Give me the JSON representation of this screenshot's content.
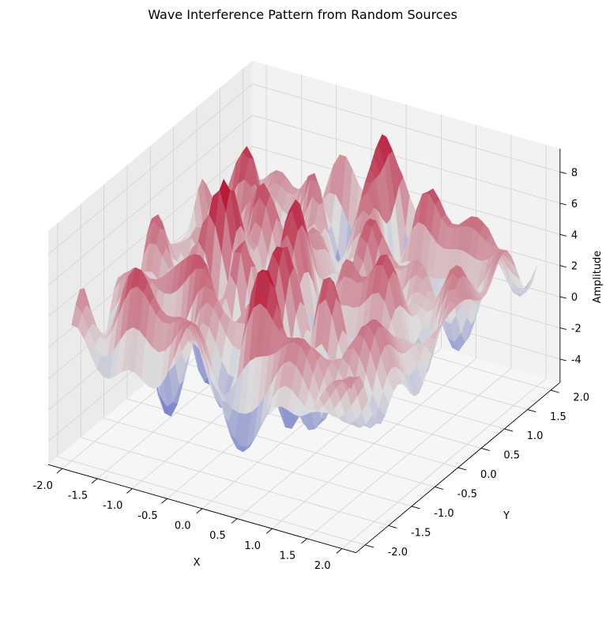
{
  "chart_data": {
    "type": "surface3d",
    "title": "Wave Interference Pattern from Random Sources",
    "xlabel": "X",
    "ylabel": "Y",
    "zlabel": "Amplitude",
    "xlim": [
      -2.2,
      2.2
    ],
    "ylim": [
      -2.2,
      2.2
    ],
    "zlim": [
      -5.5,
      9.5
    ],
    "x_ticks": [
      "-2.0",
      "-1.5",
      "-1.0",
      "-0.5",
      "0.0",
      "0.5",
      "1.0",
      "1.5",
      "2.0"
    ],
    "y_ticks": [
      "-2.0",
      "-1.5",
      "-1.0",
      "-0.5",
      "0.0",
      "0.5",
      "1.0",
      "1.5",
      "2.0"
    ],
    "z_ticks": [
      "-4",
      "-2",
      "0",
      "2",
      "4",
      "6",
      "8"
    ],
    "colormap": "coolwarm",
    "colormap_range": [
      "#3b4cc0",
      "#dddddd",
      "#b40426"
    ],
    "grid": true,
    "z_range_observed": [
      -5.2,
      9.0
    ]
  }
}
